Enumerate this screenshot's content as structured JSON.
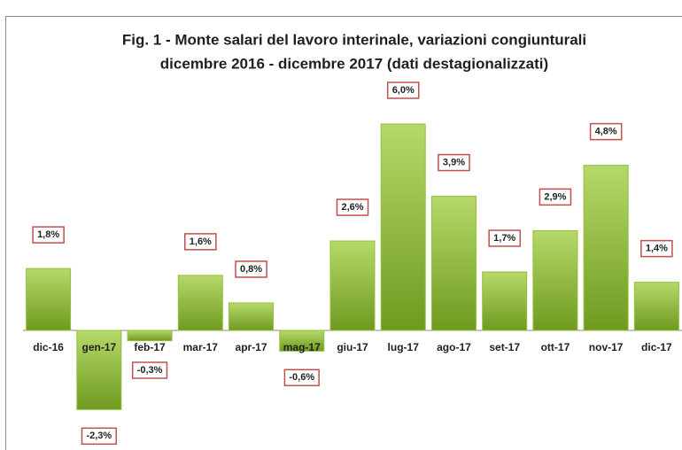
{
  "chart_data": {
    "type": "bar",
    "title": [
      "Fig. 1 - Monte  salari del lavoro interinale, variazioni congiunturali",
      "dicembre 2016 - dicembre 2017 (dati destagionalizzati)"
    ],
    "categories": [
      "dic-16",
      "gen-17",
      "feb-17",
      "mar-17",
      "apr-17",
      "mag-17",
      "giu-17",
      "lug-17",
      "ago-17",
      "set-17",
      "ott-17",
      "nov-17",
      "dic-17"
    ],
    "values": [
      1.8,
      -2.3,
      -0.3,
      1.6,
      0.8,
      -0.6,
      2.6,
      6.0,
      3.9,
      1.7,
      2.9,
      4.8,
      1.4
    ],
    "value_labels": [
      "1,8%",
      "-2,3%",
      "-0,3%",
      "1,6%",
      "0,8%",
      "-0,6%",
      "2,6%",
      "6,0%",
      "3,9%",
      "1,7%",
      "2,9%",
      "4,8%",
      "1,4%"
    ],
    "color": "#92c03a"
  }
}
